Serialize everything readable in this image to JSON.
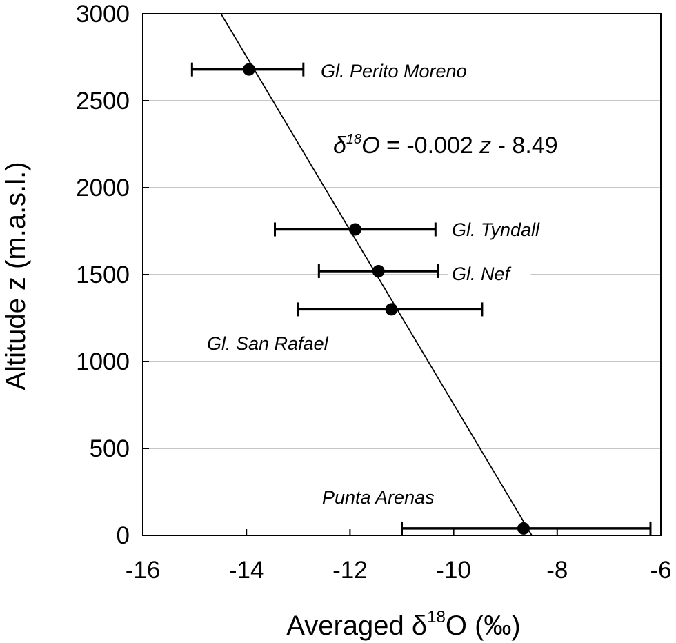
{
  "chart_data": {
    "type": "scatter",
    "xlabel_prefix": "Averaged δ",
    "xlabel_sup": "18",
    "xlabel_suffix": "O (‰)",
    "ylabel": "Altitude z  (m.a.s.l.)",
    "xlim": [
      -16,
      -6
    ],
    "ylim": [
      0,
      3000
    ],
    "xticks": [
      -16,
      -14,
      -12,
      -10,
      -8,
      -6
    ],
    "yticks": [
      0,
      500,
      1000,
      1500,
      2000,
      2500,
      3000
    ],
    "grid": "horizontal",
    "points": [
      {
        "label": "Gl. Perito Moreno",
        "x": -13.95,
        "y": 2680,
        "xerr_low": -15.05,
        "xerr_high": -12.9
      },
      {
        "label": "Gl. Tyndall",
        "x": -11.9,
        "y": 1760,
        "xerr_low": -13.45,
        "xerr_high": -10.35
      },
      {
        "label": "Gl. Nef",
        "x": -11.45,
        "y": 1520,
        "xerr_low": -12.6,
        "xerr_high": -10.3
      },
      {
        "label": "Gl. San Rafael",
        "x": -11.2,
        "y": 1300,
        "xerr_low": -13.0,
        "xerr_high": -9.45
      },
      {
        "label": "Punta Arenas",
        "x": -8.65,
        "y": 40,
        "xerr_low": -11.0,
        "xerr_high": -6.2
      }
    ],
    "fit": {
      "slope": -0.002,
      "intercept": -8.49,
      "equation_prefix": "δ",
      "equation_sup": "18",
      "equation_o": "O",
      "equation_rest": " = -0.002 ",
      "equation_z": "z",
      "equation_tail": " - 8.49"
    }
  }
}
